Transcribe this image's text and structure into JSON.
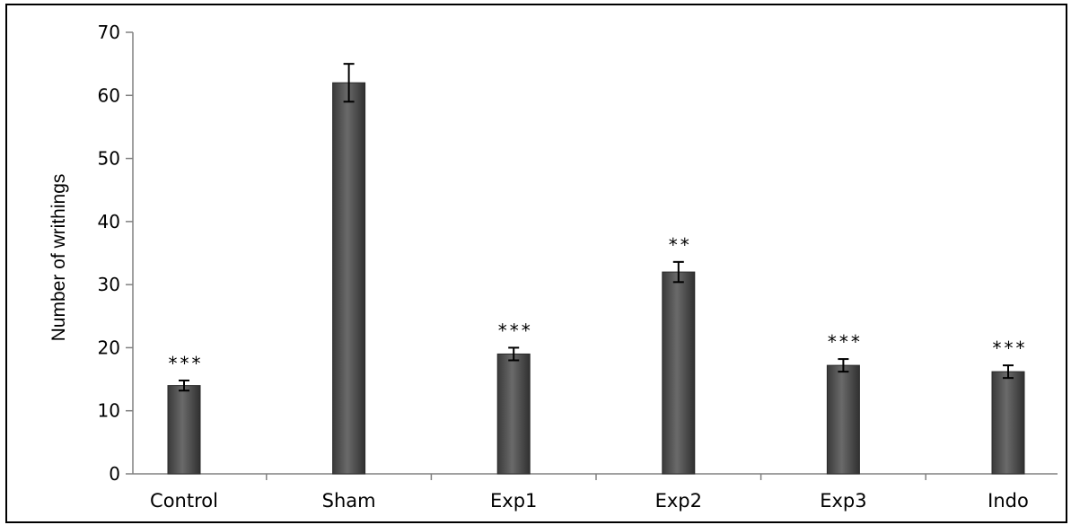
{
  "chart_data": {
    "type": "bar",
    "title": "",
    "xlabel": "",
    "ylabel": "Number of writhings",
    "ylim": [
      0,
      70
    ],
    "yticks": [
      0,
      10,
      20,
      30,
      40,
      50,
      60,
      70
    ],
    "grid": false,
    "legend": "none",
    "categories": [
      "Control",
      "Sham",
      "Exp1",
      "Exp2",
      "Exp3",
      "Indo"
    ],
    "values": [
      14,
      62,
      19,
      32,
      17.2,
      16.2
    ],
    "errors": [
      0.8,
      3,
      1,
      1.6,
      1,
      1
    ],
    "significance": [
      "***",
      "",
      "***",
      "**",
      "***",
      "***"
    ],
    "bar_color": "#4a4a4a"
  }
}
